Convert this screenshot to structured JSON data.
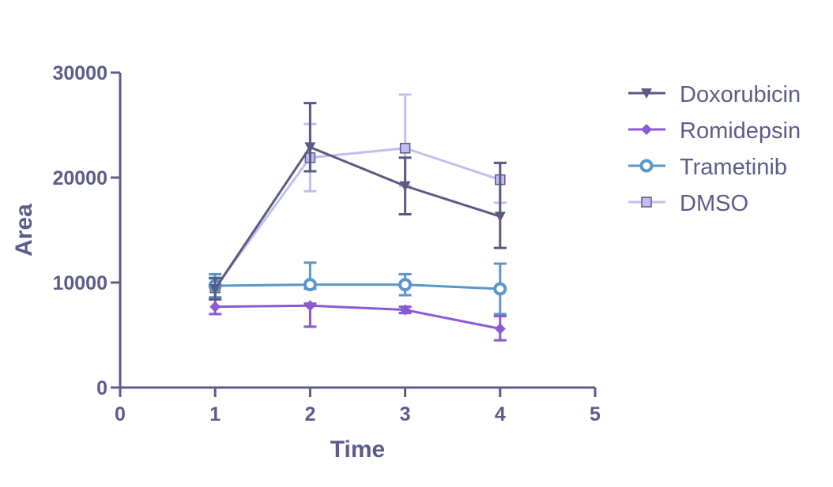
{
  "chart_data": {
    "type": "line",
    "xlabel": "Time",
    "ylabel": "Area",
    "xlim": [
      0,
      5
    ],
    "ylim": [
      0,
      30000
    ],
    "x_ticks": [
      0,
      1,
      2,
      3,
      4,
      5
    ],
    "y_ticks": [
      0,
      10000,
      20000,
      30000
    ],
    "grid": false,
    "legend_position": "right",
    "axis_color": "#5c5c8a",
    "series": [
      {
        "name": "Doxorubicin",
        "color": "#5a5a82",
        "marker": "triangle-down",
        "x": [
          1,
          2,
          3,
          4
        ],
        "y": [
          9400,
          22900,
          19200,
          16300
        ],
        "error": [
          1000,
          2300,
          2700,
          3000
        ],
        "error_upper": [
          1000,
          4200,
          2700,
          5100
        ]
      },
      {
        "name": "Romidepsin",
        "color": "#8a5ad2",
        "marker": "diamond",
        "x": [
          1,
          2,
          3,
          4
        ],
        "y": [
          7700,
          7800,
          7400,
          5600
        ],
        "error": [
          700,
          2000,
          300,
          1100
        ],
        "error_upper": [
          700,
          200,
          300,
          1200
        ]
      },
      {
        "name": "Trametinib",
        "color": "#5a96c8",
        "marker": "circle",
        "x": [
          1,
          2,
          3,
          4
        ],
        "y": [
          9700,
          9800,
          9800,
          9400
        ],
        "error": [
          1100,
          400,
          1000,
          2400
        ],
        "error_upper": [
          1100,
          2100,
          1000,
          2400
        ]
      },
      {
        "name": "DMSO",
        "color": "#c0c0f0",
        "marker": "square",
        "x": [
          1,
          2,
          3,
          4
        ],
        "y": [
          9500,
          21900,
          22800,
          19800
        ],
        "error": [
          1000,
          3200,
          3600,
          2200
        ],
        "error_upper": [
          1000,
          3200,
          5100,
          1600
        ]
      }
    ]
  }
}
